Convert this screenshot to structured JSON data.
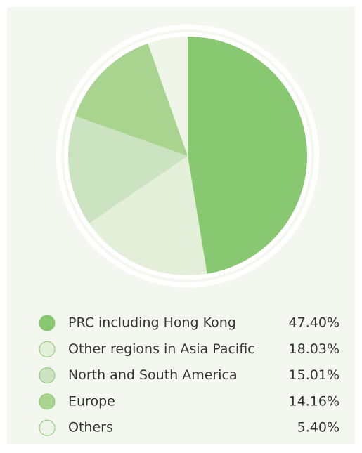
{
  "chart_data": {
    "type": "pie",
    "categories": [
      "PRC including Hong Kong",
      "Other regions in Asia Pacific",
      "North and South America",
      "Europe",
      "Others"
    ],
    "values": [
      47.4,
      18.03,
      15.01,
      14.16,
      5.4
    ],
    "value_labels": [
      "47.40%",
      "18.03%",
      "15.01%",
      "14.16%",
      "5.40%"
    ],
    "colors": [
      "#88c870",
      "#e3efd9",
      "#cbe3c0",
      "#a8d490",
      "#eef5e8"
    ]
  }
}
